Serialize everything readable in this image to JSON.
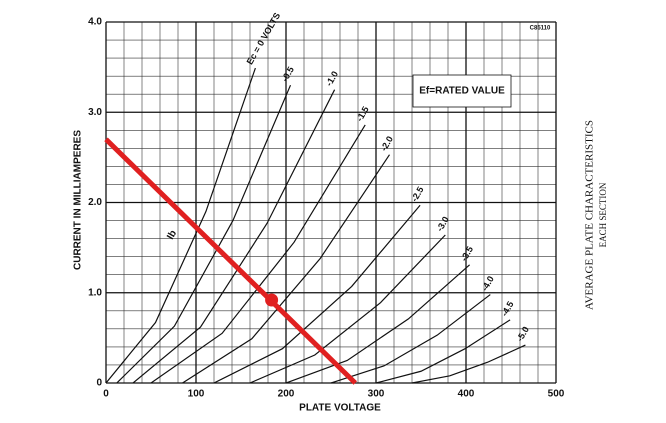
{
  "chart_data": {
    "type": "line",
    "title": "AVERAGE PLATE CHARACTERISTICS",
    "subtitle": "EACH SECTION",
    "x_label": "PLATE VOLTAGE",
    "y_label": "CURRENT IN MILLIAMPERES",
    "annotations": [
      "Ef=RATED VALUE",
      "Ib",
      "C85110"
    ],
    "xlim": [
      0,
      500
    ],
    "ylim": [
      0,
      4
    ],
    "xticks": [
      0,
      100,
      200,
      300,
      400,
      500
    ],
    "yticks": [
      0,
      {
        "value": 1,
        "label": "1.0"
      },
      {
        "value": 2,
        "label": "2.0"
      },
      {
        "value": 3,
        "label": "3.0"
      },
      {
        "value": 4,
        "label": "4.0"
      }
    ],
    "grid": true,
    "color": "#111111",
    "series": [
      {
        "name": "Ec = 0 VOLTS",
        "x": [
          0,
          55,
          111,
          166
        ],
        "values": [
          0,
          0.67,
          1.9,
          3.49
        ]
      },
      {
        "name": "-0.5",
        "x": [
          12,
          76,
          141,
          205
        ],
        "values": [
          0,
          0.63,
          1.8,
          3.3
        ]
      },
      {
        "name": "-1.0",
        "x": [
          30,
          105,
          179,
          254
        ],
        "values": [
          0,
          0.62,
          1.77,
          3.25
        ]
      },
      {
        "name": "-1.5",
        "x": [
          50,
          129,
          209,
          288
        ],
        "values": [
          0,
          0.55,
          1.56,
          2.86
        ]
      },
      {
        "name": "-2.0",
        "x": [
          85,
          162,
          238,
          315
        ],
        "values": [
          0,
          0.49,
          1.38,
          2.53
        ]
      },
      {
        "name": "-2.5",
        "x": [
          120,
          196,
          273,
          349
        ],
        "values": [
          0,
          0.38,
          1.07,
          1.97
        ]
      },
      {
        "name": "-3.0",
        "x": [
          160,
          232,
          305,
          377
        ],
        "values": [
          0,
          0.31,
          0.89,
          1.64
        ]
      },
      {
        "name": "-3.5",
        "x": [
          200,
          268,
          336,
          404
        ],
        "values": [
          0,
          0.25,
          0.71,
          1.31
        ]
      },
      {
        "name": "-4.0",
        "x": [
          250,
          309,
          368,
          427
        ],
        "values": [
          0,
          0.19,
          0.53,
          0.98
        ]
      },
      {
        "name": "-4.5",
        "x": [
          300,
          350,
          399,
          449
        ],
        "values": [
          0,
          0.13,
          0.38,
          0.7
        ]
      },
      {
        "name": "-5.0",
        "x": [
          340,
          382,
          424,
          466
        ],
        "values": [
          0,
          0.08,
          0.23,
          0.42
        ]
      }
    ],
    "load_line": {
      "color": "#e02020",
      "x": [
        0,
        277
      ],
      "values": [
        2.7,
        0
      ]
    },
    "operating_point": {
      "color": "#e02020",
      "x": 184,
      "y": 0.92
    }
  }
}
